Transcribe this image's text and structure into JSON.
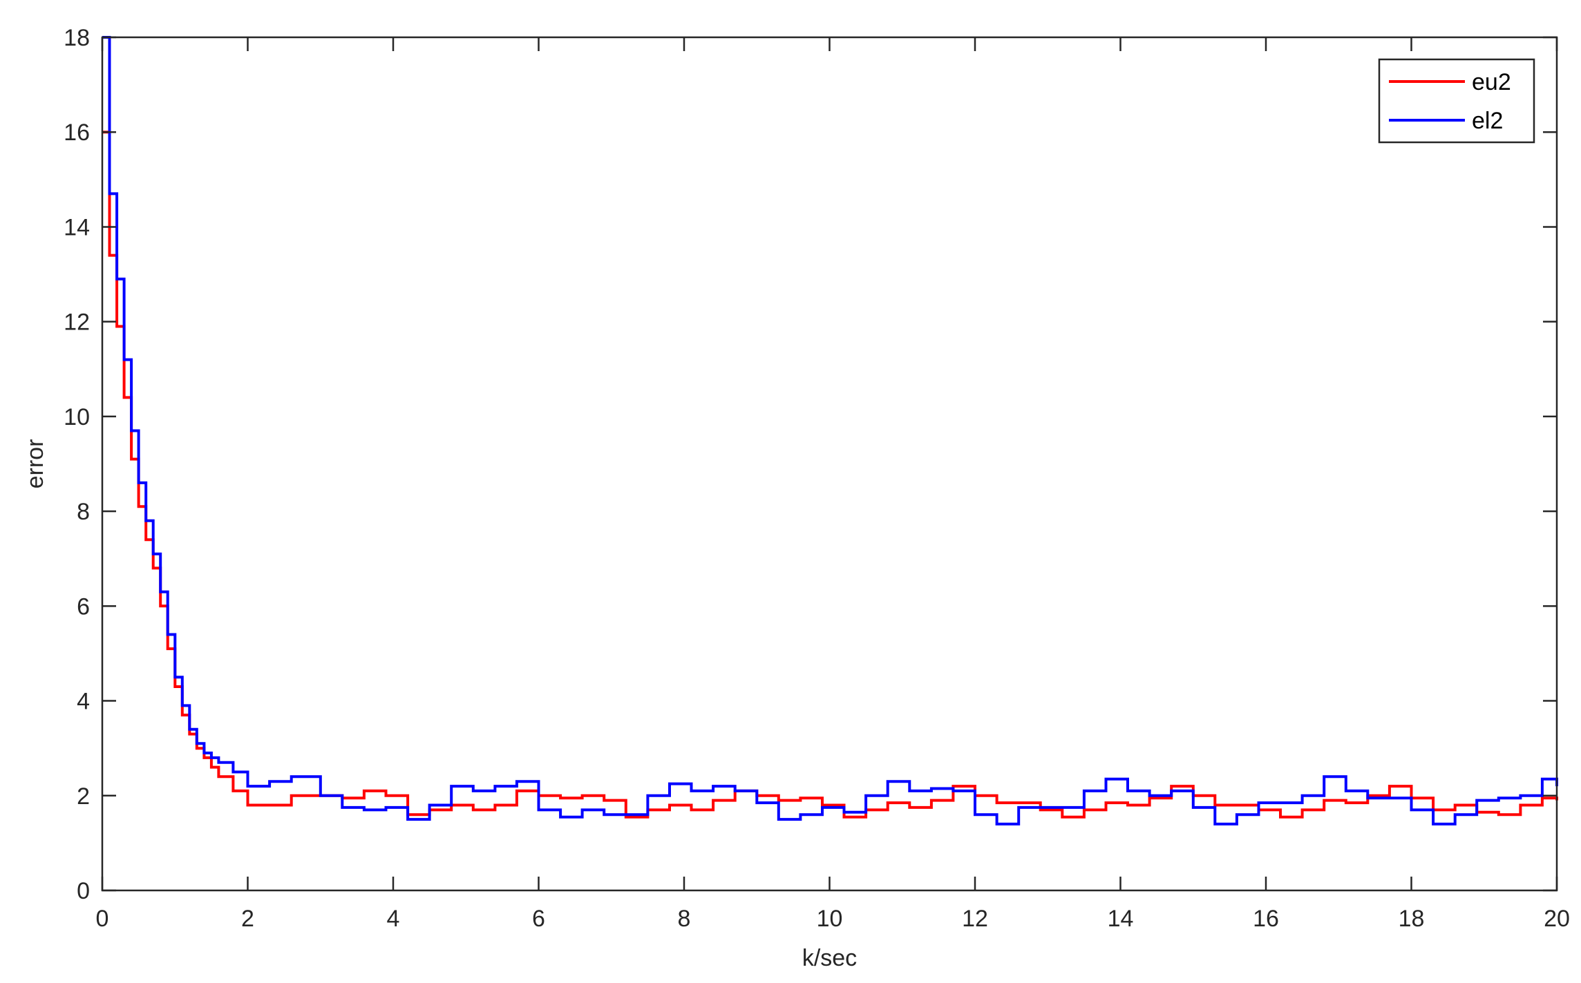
{
  "chart_data": {
    "type": "line",
    "title": "",
    "xlabel": "k/sec",
    "ylabel": "error",
    "xlim": [
      0,
      20
    ],
    "ylim": [
      0,
      18
    ],
    "xticks": [
      "0",
      "2",
      "4",
      "6",
      "8",
      "10",
      "12",
      "14",
      "16",
      "18",
      "20"
    ],
    "yticks": [
      "0",
      "2",
      "4",
      "6",
      "8",
      "10",
      "12",
      "14",
      "16",
      "18"
    ],
    "grid": false,
    "legend_position": "top-right",
    "step": true,
    "series": [
      {
        "name": "eu2",
        "color": "#ff0000",
        "x": [
          0,
          0.1,
          0.2,
          0.3,
          0.4,
          0.5,
          0.6,
          0.7,
          0.8,
          0.9,
          1.0,
          1.1,
          1.2,
          1.3,
          1.4,
          1.5,
          1.6,
          1.8,
          2.0,
          2.3,
          2.6,
          3.0,
          3.3,
          3.6,
          3.9,
          4.2,
          4.5,
          4.8,
          5.1,
          5.4,
          5.7,
          6.0,
          6.3,
          6.6,
          6.9,
          7.2,
          7.5,
          7.8,
          8.1,
          8.4,
          8.7,
          9.0,
          9.3,
          9.6,
          9.9,
          10.2,
          10.5,
          10.8,
          11.1,
          11.4,
          11.7,
          12.0,
          12.3,
          12.6,
          12.9,
          13.2,
          13.5,
          13.8,
          14.1,
          14.4,
          14.7,
          15.0,
          15.3,
          15.6,
          15.9,
          16.2,
          16.5,
          16.8,
          17.1,
          17.4,
          17.7,
          18.0,
          18.3,
          18.6,
          18.9,
          19.2,
          19.5,
          19.8,
          20.0
        ],
        "values": [
          16.0,
          13.4,
          11.9,
          10.4,
          9.1,
          8.1,
          7.4,
          6.8,
          6.0,
          5.1,
          4.3,
          3.7,
          3.3,
          3.0,
          2.8,
          2.6,
          2.4,
          2.1,
          1.8,
          1.8,
          2.0,
          2.0,
          1.95,
          2.1,
          2.0,
          1.6,
          1.7,
          1.8,
          1.7,
          1.8,
          2.1,
          2.0,
          1.95,
          2.0,
          1.9,
          1.55,
          1.7,
          1.8,
          1.7,
          1.9,
          2.1,
          2.0,
          1.9,
          1.95,
          1.8,
          1.55,
          1.7,
          1.85,
          1.75,
          1.9,
          2.2,
          2.0,
          1.85,
          1.85,
          1.7,
          1.55,
          1.7,
          1.85,
          1.8,
          1.95,
          2.2,
          2.0,
          1.8,
          1.8,
          1.7,
          1.55,
          1.7,
          1.9,
          1.85,
          2.0,
          2.2,
          1.95,
          1.7,
          1.8,
          1.65,
          1.6,
          1.8,
          1.95,
          1.9
        ]
      },
      {
        "name": "el2",
        "color": "#0000ff",
        "x": [
          0,
          0.1,
          0.2,
          0.3,
          0.4,
          0.5,
          0.6,
          0.7,
          0.8,
          0.9,
          1.0,
          1.1,
          1.2,
          1.3,
          1.4,
          1.5,
          1.6,
          1.8,
          2.0,
          2.3,
          2.6,
          3.0,
          3.3,
          3.6,
          3.9,
          4.2,
          4.5,
          4.8,
          5.1,
          5.4,
          5.7,
          6.0,
          6.3,
          6.6,
          6.9,
          7.2,
          7.5,
          7.8,
          8.1,
          8.4,
          8.7,
          9.0,
          9.3,
          9.6,
          9.9,
          10.2,
          10.5,
          10.8,
          11.1,
          11.4,
          11.7,
          12.0,
          12.3,
          12.6,
          12.9,
          13.2,
          13.5,
          13.8,
          14.1,
          14.4,
          14.7,
          15.0,
          15.3,
          15.6,
          15.9,
          16.2,
          16.5,
          16.8,
          17.1,
          17.4,
          17.7,
          18.0,
          18.3,
          18.6,
          18.9,
          19.2,
          19.5,
          19.8,
          20.0
        ],
        "values": [
          18.0,
          14.7,
          12.9,
          11.2,
          9.7,
          8.6,
          7.8,
          7.1,
          6.3,
          5.4,
          4.5,
          3.9,
          3.4,
          3.1,
          2.9,
          2.8,
          2.7,
          2.5,
          2.2,
          2.3,
          2.4,
          2.0,
          1.75,
          1.7,
          1.75,
          1.5,
          1.8,
          2.2,
          2.1,
          2.2,
          2.3,
          1.7,
          1.55,
          1.7,
          1.6,
          1.6,
          2.0,
          2.25,
          2.1,
          2.2,
          2.1,
          1.85,
          1.5,
          1.6,
          1.75,
          1.65,
          2.0,
          2.3,
          2.1,
          2.15,
          2.1,
          1.6,
          1.4,
          1.75,
          1.75,
          1.75,
          2.1,
          2.35,
          2.1,
          2.0,
          2.1,
          1.75,
          1.4,
          1.6,
          1.85,
          1.85,
          2.0,
          2.4,
          2.1,
          1.95,
          1.95,
          1.7,
          1.4,
          1.6,
          1.9,
          1.95,
          2.0,
          2.35,
          2.2
        ]
      }
    ]
  }
}
